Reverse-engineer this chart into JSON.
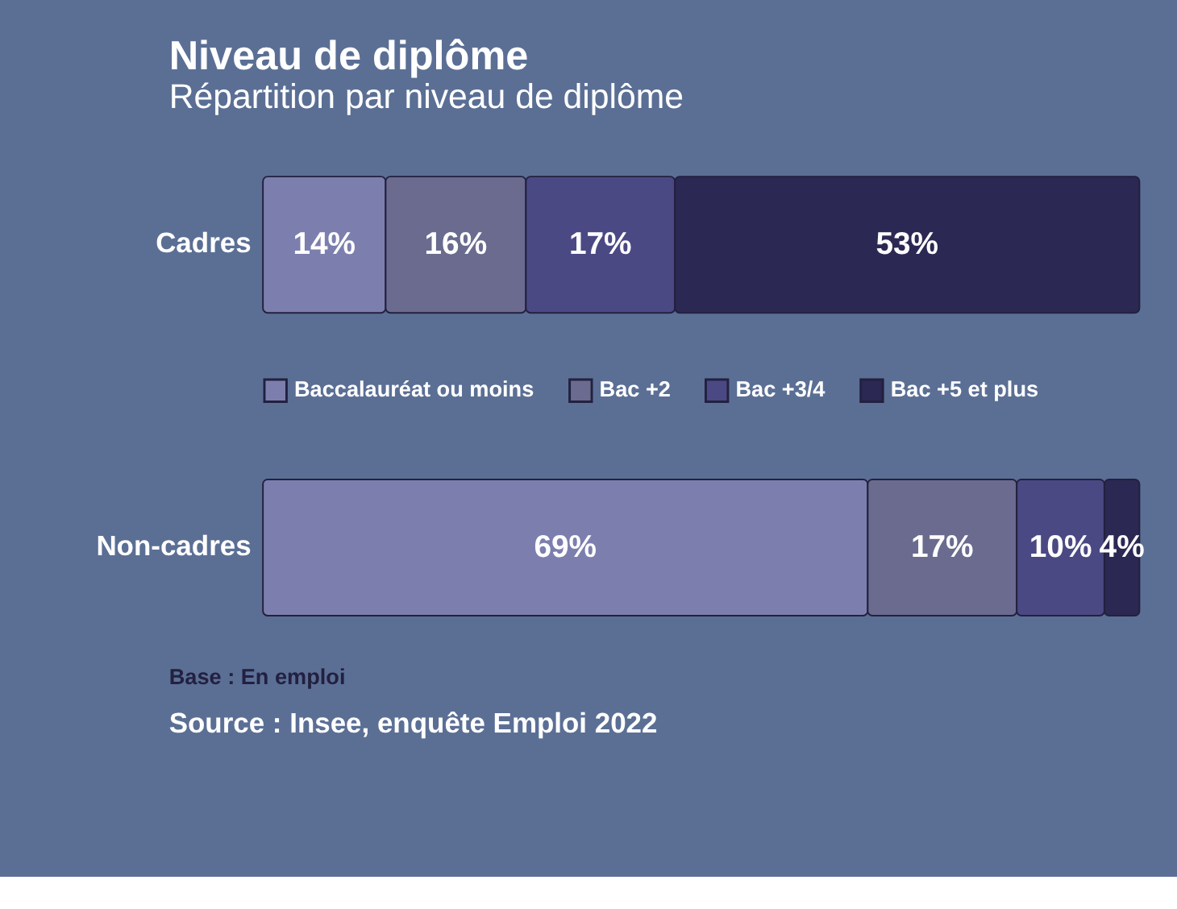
{
  "chart_data": {
    "type": "bar",
    "title": "Niveau de diplôme",
    "subtitle": "Répartition par niveau de diplôme",
    "orientation": "horizontal",
    "stacked": true,
    "legend": "center",
    "categories": [
      "Cadres",
      "Non-cadres"
    ],
    "series": [
      {
        "name": "Baccalauréat ou moins",
        "color": "#7c7fae",
        "values": [
          14,
          69
        ],
        "value_labels": [
          "14%",
          "69%"
        ]
      },
      {
        "name": "Bac +2",
        "color": "#6a6b8e",
        "values": [
          16,
          17
        ],
        "value_labels": [
          "16%",
          "17%"
        ]
      },
      {
        "name": "Bac +3/4",
        "color": "#4b4983",
        "values": [
          17,
          10
        ],
        "value_labels": [
          "17%",
          "10%"
        ]
      },
      {
        "name": "Bac +5 et plus",
        "color": "#2b2853",
        "values": [
          53,
          4
        ],
        "value_labels": [
          "53%",
          "4%"
        ]
      }
    ],
    "annotations": [
      "Base : En emploi",
      "Source : Insee, enquête Emploi 2022"
    ]
  }
}
